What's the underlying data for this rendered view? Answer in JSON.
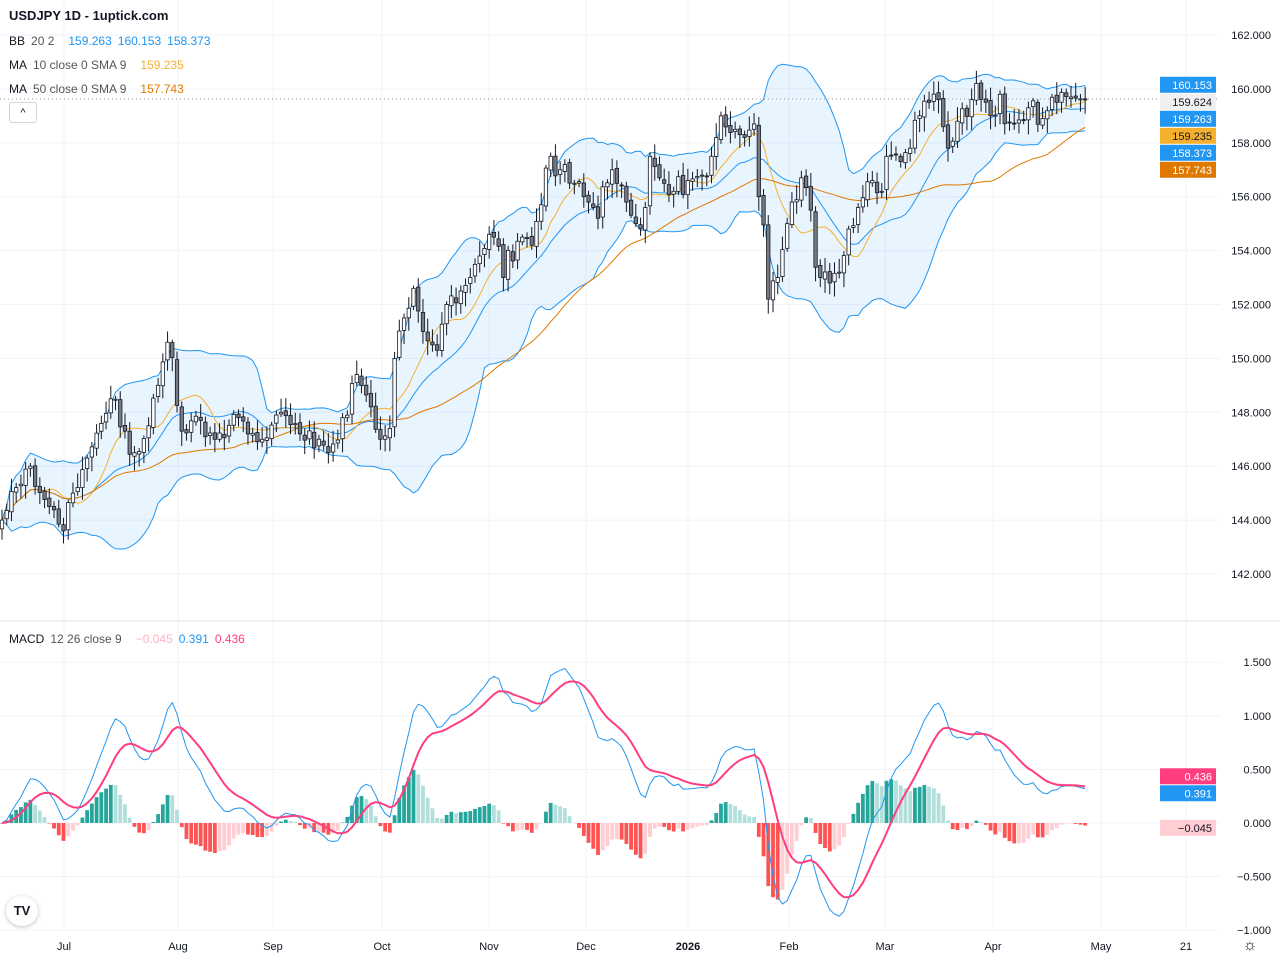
{
  "header": {
    "title": "USDJPY 1D - 1uptick.com"
  },
  "legend": {
    "bb": {
      "name": "BB",
      "params": "20 2",
      "basis": "159.263",
      "upper": "160.153",
      "lower": "158.373"
    },
    "ma10": {
      "name": "MA",
      "params": "10 close 0 SMA 9",
      "value": "159.235"
    },
    "ma50": {
      "name": "MA",
      "params": "50 close 0 SMA 9",
      "value": "157.743"
    },
    "macd": {
      "name": "MACD",
      "params": "12 26 close 9",
      "hist": "−0.045",
      "macd": "0.391",
      "signal": "0.436"
    }
  },
  "colors": {
    "bb_line": "#2196f3",
    "bb_fill": "#2196f3",
    "ma10": "#f5b02e",
    "ma50": "#e07800",
    "macd_line": "#2196f3",
    "signal_line": "#ff3d7f",
    "hist_up_strong": "#26a69a",
    "hist_up_weak": "#b2dfdb",
    "hist_down_strong": "#ff5252",
    "hist_down_weak": "#ffcdd2",
    "candle_up": "#ffffff",
    "candle_down": "#787b86",
    "candle_border": "#131722"
  },
  "price_tags": [
    {
      "label": "160.153",
      "value": 160.153,
      "bg": "#2196f3",
      "fg": "#ffffff"
    },
    {
      "label": "159.624",
      "value": 159.624,
      "bg": "#f0f0f0",
      "fg": "#131722"
    },
    {
      "label": "159.263",
      "value": 159.263,
      "bg": "#2196f3",
      "fg": "#ffffff"
    },
    {
      "label": "159.235",
      "value": 159.235,
      "bg": "#f5b02e",
      "fg": "#131722"
    },
    {
      "label": "158.373",
      "value": 158.373,
      "bg": "#2196f3",
      "fg": "#ffffff"
    },
    {
      "label": "157.743",
      "value": 157.743,
      "bg": "#e07800",
      "fg": "#ffffff"
    }
  ],
  "macd_tags": [
    {
      "label": "0.436",
      "value": 0.436,
      "bg": "#ff3d7f",
      "fg": "#ffffff"
    },
    {
      "label": "0.391",
      "value": 0.391,
      "bg": "#2196f3",
      "fg": "#ffffff"
    },
    {
      "label": "−0.045",
      "value": -0.045,
      "bg": "#ffcdd2",
      "fg": "#131722"
    }
  ],
  "ui": {
    "collapse_icon": "chevron-up-icon",
    "collapse_label": "^",
    "logo": "TV",
    "settings_label": "☼"
  },
  "chart_data": {
    "type": "candlestick",
    "symbol": "USDJPY",
    "interval": "1D",
    "price_axis": {
      "ticks": [
        "162.000",
        "160.000",
        "158.000",
        "156.000",
        "154.000",
        "152.000",
        "150.000",
        "148.000",
        "146.000",
        "144.000",
        "142.000"
      ],
      "ylim": [
        141.4,
        163.3
      ]
    },
    "macd_axis": {
      "ticks": [
        "1.500",
        "1.000",
        "0.500",
        "0.000",
        "−0.500",
        "−1.000"
      ],
      "ylim": [
        -1.0,
        1.8
      ]
    },
    "time_axis": {
      "ticks": [
        "Jul",
        "Aug",
        "Sep",
        "Oct",
        "Nov",
        "Dec",
        "2026",
        "Feb",
        "Mar",
        "Apr",
        "May",
        "21"
      ]
    },
    "grid": true,
    "last_price": 159.624,
    "close_waypoints": [
      [
        "2025-06-12",
        144.0
      ],
      [
        "2025-06-20",
        146.0
      ],
      [
        "2025-06-26",
        144.5
      ],
      [
        "2025-07-01",
        143.6
      ],
      [
        "2025-07-03",
        145.0
      ],
      [
        "2025-07-08",
        146.3
      ],
      [
        "2025-07-15",
        148.5
      ],
      [
        "2025-07-18",
        147.3
      ],
      [
        "2025-07-22",
        146.5
      ],
      [
        "2025-07-25",
        147.5
      ],
      [
        "2025-07-29",
        149.0
      ],
      [
        "2025-07-31",
        150.6
      ],
      [
        "2025-08-05",
        147.3
      ],
      [
        "2025-08-11",
        147.7
      ],
      [
        "2025-08-14",
        147.0
      ],
      [
        "2025-08-21",
        147.8
      ],
      [
        "2025-08-28",
        147.0
      ],
      [
        "2025-09-03",
        148.0
      ],
      [
        "2025-09-09",
        147.2
      ],
      [
        "2025-09-15",
        147.0
      ],
      [
        "2025-09-17",
        146.5
      ],
      [
        "2025-09-22",
        147.8
      ],
      [
        "2025-09-25",
        149.4
      ],
      [
        "2025-09-30",
        148.2
      ],
      [
        "2025-10-02",
        147.0
      ],
      [
        "2025-10-06",
        147.4
      ],
      [
        "2025-10-07",
        150.0
      ],
      [
        "2025-10-09",
        151.5
      ],
      [
        "2025-10-13",
        152.6
      ],
      [
        "2025-10-15",
        151.0
      ],
      [
        "2025-10-20",
        150.3
      ],
      [
        "2025-10-22",
        152.0
      ],
      [
        "2025-10-27",
        152.5
      ],
      [
        "2025-10-29",
        153.0
      ],
      [
        "2025-10-31",
        153.8
      ],
      [
        "2025-11-05",
        154.5
      ],
      [
        "2025-11-07",
        153.0
      ],
      [
        "2025-11-13",
        154.5
      ],
      [
        "2025-11-17",
        154.2
      ],
      [
        "2025-11-19",
        155.7
      ],
      [
        "2025-11-21",
        157.5
      ],
      [
        "2025-11-25",
        157.0
      ],
      [
        "2025-11-28",
        156.5
      ],
      [
        "2025-12-03",
        155.8
      ],
      [
        "2025-12-05",
        155.2
      ],
      [
        "2025-12-10",
        157.0
      ],
      [
        "2025-12-15",
        155.8
      ],
      [
        "2025-12-17",
        155.0
      ],
      [
        "2025-12-19",
        155.6
      ],
      [
        "2025-12-22",
        157.5
      ],
      [
        "2025-12-24",
        156.7
      ],
      [
        "2025-12-29",
        156.2
      ],
      [
        "2026-01-01",
        156.6
      ],
      [
        "2026-01-06",
        156.8
      ],
      [
        "2026-01-08",
        157.5
      ],
      [
        "2026-01-12",
        159.0
      ],
      [
        "2026-01-15",
        158.5
      ],
      [
        "2026-01-19",
        158.2
      ],
      [
        "2026-01-21",
        158.7
      ],
      [
        "2026-01-22",
        156.0
      ],
      [
        "2026-01-26",
        152.2
      ],
      [
        "2026-01-28",
        153.0
      ],
      [
        "2026-01-30",
        155.0
      ],
      [
        "2026-02-02",
        155.8
      ],
      [
        "2026-02-04",
        156.7
      ],
      [
        "2026-02-06",
        155.5
      ],
      [
        "2026-02-10",
        153.0
      ],
      [
        "2026-02-12",
        152.8
      ],
      [
        "2026-02-16",
        153.2
      ],
      [
        "2026-02-18",
        154.8
      ],
      [
        "2026-02-20",
        155.6
      ],
      [
        "2026-02-25",
        156.6
      ],
      [
        "2026-02-27",
        156.2
      ],
      [
        "2026-03-02",
        157.5
      ],
      [
        "2026-03-05",
        157.3
      ],
      [
        "2026-03-09",
        157.8
      ],
      [
        "2026-03-11",
        159.0
      ],
      [
        "2026-03-13",
        159.5
      ],
      [
        "2026-03-17",
        159.6
      ],
      [
        "2026-03-19",
        157.8
      ],
      [
        "2026-03-23",
        158.8
      ],
      [
        "2026-03-26",
        159.6
      ],
      [
        "2026-03-27",
        160.2
      ],
      [
        "2026-04-01",
        159.0
      ],
      [
        "2026-04-03",
        159.8
      ],
      [
        "2026-04-08",
        158.7
      ],
      [
        "2026-04-13",
        159.3
      ],
      [
        "2026-04-16",
        158.9
      ],
      [
        "2026-04-21",
        159.5
      ],
      [
        "2026-04-24",
        159.7
      ],
      [
        "2026-04-29",
        159.624
      ]
    ]
  }
}
